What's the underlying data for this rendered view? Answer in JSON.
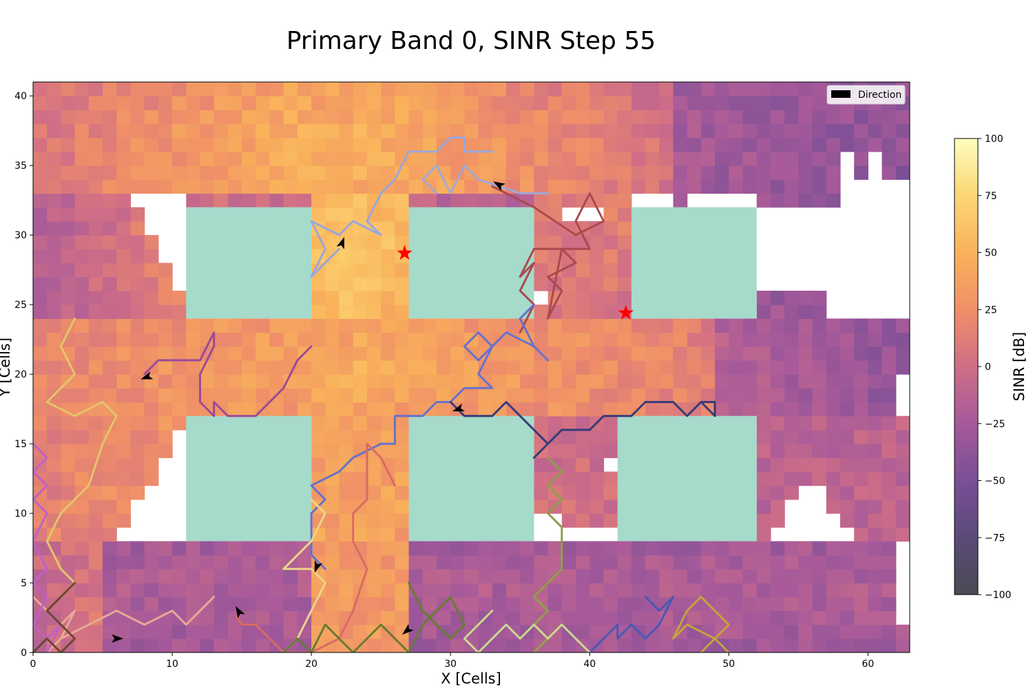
{
  "chart_data": {
    "type": "heatmap",
    "title": "Primary Band 0, SINR Step 55",
    "xlabel": "X [Cells]",
    "ylabel": "Y [Cells]",
    "xlim": [
      0,
      63
    ],
    "ylim": [
      0,
      41
    ],
    "xticks": [
      0,
      10,
      20,
      30,
      40,
      50,
      60
    ],
    "yticks": [
      0,
      5,
      10,
      15,
      20,
      25,
      30,
      35,
      40
    ],
    "grid": false,
    "legend": {
      "placement": "top-right",
      "entries": [
        {
          "label": "Direction",
          "marker": "arrow",
          "color": "#000000"
        }
      ]
    },
    "colorbar": {
      "label": "SINR [dB]",
      "range": [
        -100,
        100
      ],
      "ticks": [
        100,
        75,
        50,
        25,
        0,
        -25,
        -50,
        -75,
        -100
      ],
      "tick_labels": [
        "100",
        "75",
        "50",
        "25",
        "0",
        "−25",
        "−50",
        "−75",
        "−100"
      ],
      "colormap": "magma-like (dark grey → purple → pink → orange → light yellow)"
    },
    "buildings": {
      "color": "#a6dacb",
      "rects": [
        {
          "x": [
            11,
            20
          ],
          "y": [
            24,
            32
          ]
        },
        {
          "x": [
            27,
            36
          ],
          "y": [
            24,
            32
          ]
        },
        {
          "x": [
            43,
            52
          ],
          "y": [
            24,
            32
          ]
        },
        {
          "x": [
            11,
            20
          ],
          "y": [
            8,
            17
          ]
        },
        {
          "x": [
            27,
            36
          ],
          "y": [
            8,
            17
          ]
        },
        {
          "x": [
            42,
            52
          ],
          "y": [
            8,
            17
          ]
        }
      ]
    },
    "base_stations": {
      "marker": "star",
      "color": "#ff0000",
      "points": [
        {
          "x": 26.7,
          "y": 28.7
        },
        {
          "x": 42.6,
          "y": 24.4
        }
      ]
    },
    "trajectories": [
      {
        "color": "#9aa6dc",
        "points": [
          [
            22,
            29
          ],
          [
            21,
            28
          ],
          [
            20,
            27
          ],
          [
            21,
            29
          ],
          [
            20,
            31
          ],
          [
            22,
            30
          ],
          [
            23,
            31
          ],
          [
            25,
            30
          ],
          [
            24,
            31
          ],
          [
            25,
            33
          ],
          [
            26,
            34
          ],
          [
            27,
            36
          ],
          [
            29,
            36
          ],
          [
            30,
            37
          ],
          [
            31,
            37
          ],
          [
            31,
            36
          ],
          [
            32,
            36
          ],
          [
            33,
            36
          ]
        ],
        "arrow": {
          "x": 22.2,
          "y": 29.4,
          "angle": 70
        }
      },
      {
        "color": "#a0a8d8",
        "points": [
          [
            29,
            33
          ],
          [
            28,
            34
          ],
          [
            29,
            35
          ],
          [
            30,
            33
          ],
          [
            31,
            35
          ],
          [
            32,
            34
          ],
          [
            35,
            33
          ],
          [
            37,
            33
          ]
        ]
      },
      {
        "color": "#ab4a4e",
        "points": [
          [
            35,
            23
          ],
          [
            36,
            25
          ],
          [
            35,
            26
          ],
          [
            36,
            28
          ],
          [
            35,
            27
          ],
          [
            36,
            29
          ],
          [
            38,
            29
          ],
          [
            39,
            28
          ],
          [
            37,
            27
          ],
          [
            38,
            26
          ],
          [
            37,
            24
          ],
          [
            38,
            29
          ],
          [
            40,
            29
          ],
          [
            39,
            31
          ],
          [
            40,
            33
          ],
          [
            41,
            31
          ],
          [
            39,
            30
          ],
          [
            36,
            32
          ],
          [
            33,
            33.5
          ]
        ],
        "arrow": {
          "x": 33.5,
          "y": 33.6,
          "angle": 150
        }
      },
      {
        "color": "#6672cc",
        "points": [
          [
            21,
            6
          ],
          [
            20,
            7
          ],
          [
            20,
            10
          ],
          [
            21,
            11
          ],
          [
            20,
            12
          ],
          [
            22,
            13
          ],
          [
            23,
            14
          ],
          [
            25,
            15
          ],
          [
            26,
            15
          ],
          [
            26,
            17
          ],
          [
            28,
            17
          ],
          [
            29,
            18
          ],
          [
            30,
            18
          ],
          [
            31,
            19
          ],
          [
            33,
            19
          ],
          [
            32,
            20
          ],
          [
            33,
            22
          ],
          [
            32,
            23
          ],
          [
            31,
            22
          ],
          [
            32,
            21
          ],
          [
            33,
            22
          ],
          [
            34,
            23
          ],
          [
            36,
            22
          ],
          [
            37,
            21
          ],
          [
            36,
            22
          ],
          [
            35,
            24
          ],
          [
            36,
            25
          ]
        ],
        "arrow": {
          "x": 20.4,
          "y": 6.2,
          "angle": 250
        }
      },
      {
        "color": "#363c78",
        "points": [
          [
            30,
            18
          ],
          [
            31,
            17
          ],
          [
            33,
            17
          ],
          [
            34,
            18
          ],
          [
            35,
            17
          ],
          [
            36,
            16
          ],
          [
            37,
            15
          ],
          [
            36,
            14
          ],
          [
            37,
            15
          ],
          [
            38,
            16
          ],
          [
            40,
            16
          ],
          [
            41,
            17
          ],
          [
            43,
            17
          ],
          [
            44,
            18
          ],
          [
            46,
            18
          ],
          [
            47,
            17
          ],
          [
            48,
            18
          ],
          [
            49,
            18
          ],
          [
            49,
            17
          ],
          [
            48,
            18
          ]
        ],
        "arrow": {
          "x": 30.6,
          "y": 17.5,
          "angle": 200
        }
      },
      {
        "color": "#9b4b97",
        "points": [
          [
            20,
            22
          ],
          [
            19,
            21
          ],
          [
            18,
            19
          ],
          [
            16,
            17
          ],
          [
            14,
            17
          ],
          [
            13,
            18
          ],
          [
            13,
            17
          ],
          [
            12,
            18
          ],
          [
            12,
            20
          ],
          [
            13,
            22
          ],
          [
            13,
            23
          ],
          [
            12,
            21
          ],
          [
            10,
            21
          ],
          [
            9,
            21
          ],
          [
            8,
            20
          ]
        ],
        "arrow": {
          "x": 8.2,
          "y": 19.8,
          "angle": 200
        }
      },
      {
        "color": "#d86a64",
        "points": [
          [
            26,
            12
          ],
          [
            25,
            14
          ],
          [
            24,
            15
          ],
          [
            24,
            11
          ],
          [
            23,
            10
          ],
          [
            23,
            8
          ],
          [
            24,
            6
          ],
          [
            23,
            3
          ],
          [
            22,
            1
          ],
          [
            20,
            0
          ],
          [
            18,
            0
          ],
          [
            17,
            1
          ],
          [
            16,
            2
          ],
          [
            15,
            2
          ],
          [
            14.6,
            2.6
          ]
        ],
        "arrow": {
          "x": 14.8,
          "y": 2.9,
          "angle": 120
        }
      },
      {
        "color": "#e3c56a",
        "points": [
          [
            3,
            24
          ],
          [
            2,
            22
          ],
          [
            3,
            20
          ],
          [
            1,
            18
          ],
          [
            3,
            17
          ],
          [
            5,
            18
          ],
          [
            6,
            17
          ],
          [
            5,
            15
          ],
          [
            4,
            12
          ],
          [
            3,
            11
          ],
          [
            2,
            10
          ],
          [
            1,
            8
          ],
          [
            2,
            6
          ],
          [
            3,
            5
          ],
          [
            2,
            4
          ]
        ]
      },
      {
        "color": "#ecd48a",
        "points": [
          [
            20,
            11
          ],
          [
            21,
            10
          ],
          [
            20,
            8
          ],
          [
            19,
            7
          ],
          [
            18,
            6
          ],
          [
            20,
            6
          ],
          [
            21,
            5
          ],
          [
            20,
            3
          ],
          [
            19,
            1
          ],
          [
            18,
            0
          ]
        ]
      },
      {
        "color": "#687c32",
        "points": [
          [
            18,
            0
          ],
          [
            19,
            1
          ],
          [
            20,
            0
          ],
          [
            21,
            2
          ],
          [
            22,
            1
          ],
          [
            23,
            0
          ],
          [
            24,
            1
          ],
          [
            25,
            2
          ],
          [
            26,
            1
          ],
          [
            27,
            0
          ],
          [
            28,
            2
          ],
          [
            29,
            3
          ],
          [
            30,
            4
          ],
          [
            31,
            2
          ],
          [
            30,
            1
          ],
          [
            29,
            2
          ],
          [
            28,
            3
          ],
          [
            27,
            5
          ]
        ],
        "arrow": {
          "x": 26.9,
          "y": 1.6,
          "angle": 220
        }
      },
      {
        "color": "#8da048",
        "points": [
          [
            37,
            14
          ],
          [
            38,
            13
          ],
          [
            37,
            12
          ],
          [
            38,
            11
          ],
          [
            37,
            10
          ],
          [
            38,
            9
          ],
          [
            38,
            6
          ],
          [
            37,
            5
          ],
          [
            36,
            4
          ],
          [
            37,
            3
          ],
          [
            36,
            2
          ],
          [
            37,
            1
          ],
          [
            36,
            0
          ]
        ]
      },
      {
        "color": "#4a58b4",
        "points": [
          [
            44,
            4
          ],
          [
            45,
            3
          ],
          [
            46,
            4
          ],
          [
            45,
            2
          ],
          [
            44,
            1
          ],
          [
            43,
            2
          ],
          [
            42,
            1
          ],
          [
            42,
            2
          ],
          [
            41,
            1
          ],
          [
            40,
            0
          ],
          [
            39,
            1
          ],
          [
            38,
            2
          ]
        ]
      },
      {
        "color": "#c4a43c",
        "points": [
          [
            50,
            0
          ],
          [
            49,
            1
          ],
          [
            47,
            2
          ],
          [
            46,
            1
          ],
          [
            47,
            3
          ],
          [
            48,
            4
          ],
          [
            49,
            3
          ],
          [
            50,
            2
          ],
          [
            49,
            1
          ],
          [
            48,
            0
          ]
        ]
      },
      {
        "color": "#ccd88c",
        "points": [
          [
            33,
            3
          ],
          [
            32,
            2
          ],
          [
            31,
            1
          ],
          [
            32,
            0
          ],
          [
            33,
            1
          ],
          [
            34,
            2
          ],
          [
            35,
            1
          ],
          [
            36,
            2
          ],
          [
            37,
            1
          ],
          [
            38,
            2
          ],
          [
            39,
            1
          ],
          [
            40,
            0
          ]
        ]
      },
      {
        "color": "#e7a996",
        "points": [
          [
            0,
            4
          ],
          [
            1,
            3
          ],
          [
            2,
            2
          ],
          [
            3,
            3
          ],
          [
            2,
            1
          ],
          [
            1,
            0
          ],
          [
            2,
            1
          ],
          [
            4,
            2
          ],
          [
            6,
            3
          ],
          [
            8,
            2
          ],
          [
            10,
            3
          ],
          [
            11,
            2
          ],
          [
            12,
            3
          ],
          [
            13,
            4
          ]
        ],
        "arrow": {
          "x": 6.0,
          "y": 1.0,
          "angle": 0
        }
      },
      {
        "color": "#c060c8",
        "points": [
          [
            0,
            15
          ],
          [
            1,
            14
          ],
          [
            0,
            13
          ],
          [
            1,
            12
          ],
          [
            0,
            11
          ],
          [
            1,
            10
          ],
          [
            0,
            8
          ],
          [
            1,
            6
          ],
          [
            0,
            5
          ],
          [
            1,
            4
          ],
          [
            0,
            2
          ],
          [
            1,
            1
          ],
          [
            2,
            2
          ],
          [
            1,
            0
          ]
        ]
      },
      {
        "color": "#6c4830",
        "points": [
          [
            3,
            5
          ],
          [
            2,
            4
          ],
          [
            1,
            3
          ],
          [
            2,
            2
          ],
          [
            3,
            1
          ],
          [
            2,
            0
          ],
          [
            1,
            1
          ],
          [
            0,
            0
          ]
        ]
      }
    ]
  }
}
